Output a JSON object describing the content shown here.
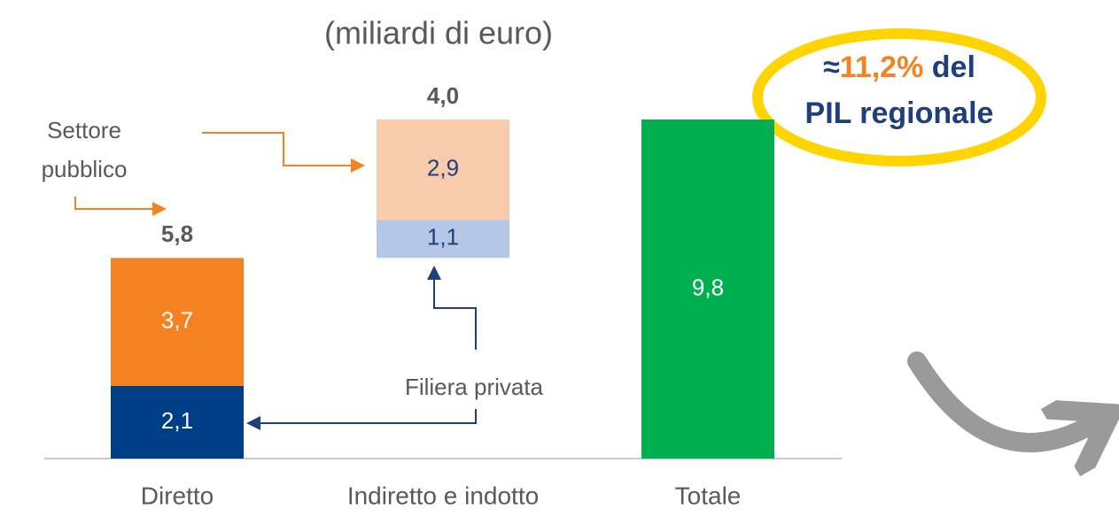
{
  "chart_data": {
    "type": "waterfall",
    "subtitle": "(miliardi di euro)",
    "categories": [
      "Diretto",
      "Indiretto e indotto",
      "Totale"
    ],
    "series": [
      {
        "name": "Filiera privata",
        "values": [
          2.1,
          1.1,
          null
        ],
        "value_labels": [
          "2,1",
          "1,1",
          null
        ],
        "colors": [
          "#003f87",
          "#b4c7e7",
          null
        ],
        "label_colors": [
          "#ffffff",
          "#1f3f7a",
          null
        ]
      },
      {
        "name": "Settore pubblico",
        "values": [
          3.7,
          2.9,
          null
        ],
        "value_labels": [
          "3,7",
          "2,9",
          null
        ],
        "colors": [
          "#f58220",
          "#f8cbad",
          null
        ],
        "label_colors": [
          "#ffffff",
          "#1f3f7a",
          null
        ]
      },
      {
        "values": [
          null,
          null,
          9.8
        ],
        "value_labels": [
          null,
          null,
          "9,8"
        ],
        "colors": [
          null,
          null,
          "#00b050"
        ],
        "label_colors": [
          null,
          null,
          "#ffffff"
        ]
      }
    ],
    "totals": {
      "values": [
        5.8,
        4.0,
        null
      ],
      "value_labels": [
        "5,8",
        "4,0",
        null
      ]
    },
    "total_categories": [
      false,
      false,
      true
    ],
    "callout": {
      "prefix": "≈",
      "value": "11,2%",
      "rest": "del",
      "line2": "PIL regionale"
    }
  }
}
